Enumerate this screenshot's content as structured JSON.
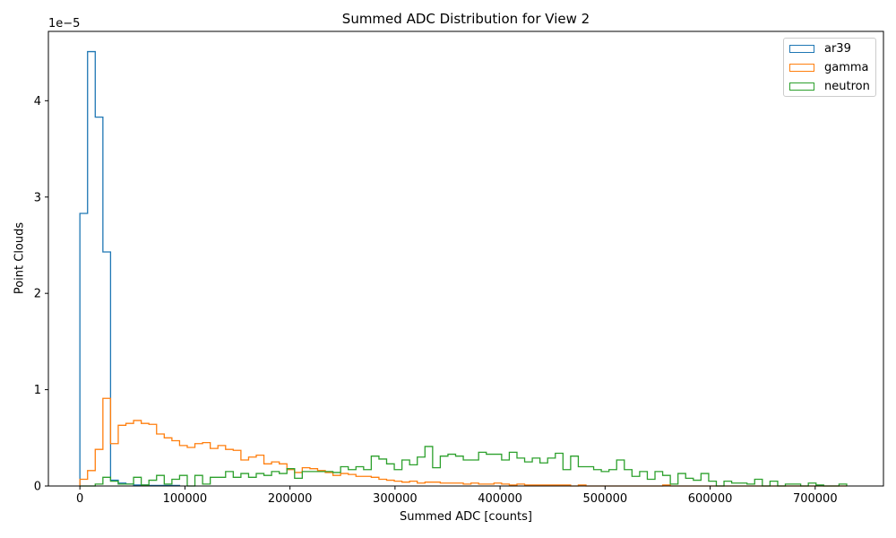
{
  "chart_data": {
    "type": "histogram",
    "title": "Summed ADC Distribution for View 2",
    "xlabel": "Summed ADC [counts]",
    "ylabel": "Point Clouds",
    "y_offset_label": "1e−5",
    "y_scale_exponent": -5,
    "xlim": [
      -30000,
      765000
    ],
    "ylim": [
      0,
      4.72
    ],
    "x_ticks": [
      0,
      100000,
      200000,
      300000,
      400000,
      500000,
      600000,
      700000
    ],
    "y_ticks": [
      0,
      1,
      2,
      3,
      4
    ],
    "grid": false,
    "legend_position": "top-right",
    "series": [
      {
        "name": "ar39",
        "color": "#1f77b4",
        "bin_width": 7300,
        "bin_start": 0,
        "values": [
          2.83,
          4.51,
          3.83,
          2.43,
          0.06,
          0.03,
          0.02,
          0.01,
          0.01,
          0.005,
          0.005,
          0.005,
          0.005
        ]
      },
      {
        "name": "gamma",
        "color": "#ff7f0e",
        "bin_width": 7300,
        "bin_start": 0,
        "values": [
          0.07,
          0.16,
          0.38,
          0.91,
          0.44,
          0.63,
          0.65,
          0.68,
          0.65,
          0.64,
          0.54,
          0.5,
          0.47,
          0.42,
          0.4,
          0.44,
          0.45,
          0.39,
          0.42,
          0.38,
          0.37,
          0.27,
          0.3,
          0.32,
          0.23,
          0.25,
          0.23,
          0.17,
          0.14,
          0.19,
          0.18,
          0.16,
          0.14,
          0.11,
          0.13,
          0.12,
          0.1,
          0.1,
          0.09,
          0.07,
          0.06,
          0.05,
          0.04,
          0.05,
          0.03,
          0.04,
          0.04,
          0.03,
          0.03,
          0.03,
          0.02,
          0.03,
          0.02,
          0.02,
          0.03,
          0.02,
          0.01,
          0.02,
          0.01,
          0.01,
          0.01,
          0.01,
          0.01,
          0.01,
          0.0,
          0.01,
          0.0,
          0.0,
          0.0,
          0.0,
          0.0,
          0.0,
          0.0,
          0.0,
          0.0,
          0.0,
          0.01,
          0.0,
          0.0,
          0.0,
          0.0,
          0.0,
          0.0,
          0.0,
          0.0,
          0.0,
          0.0,
          0.0,
          0.0,
          0.0,
          0.0,
          0.0,
          0.0,
          0.0,
          0.0,
          0.0,
          0.0,
          0.0,
          0.0,
          0.0
        ]
      },
      {
        "name": "neutron",
        "color": "#2ca02c",
        "bin_width": 7300,
        "bin_start": 0,
        "values": [
          0.0,
          0.0,
          0.02,
          0.09,
          0.05,
          0.02,
          0.02,
          0.09,
          0.01,
          0.06,
          0.11,
          0.02,
          0.07,
          0.11,
          0.0,
          0.11,
          0.02,
          0.09,
          0.09,
          0.15,
          0.09,
          0.13,
          0.09,
          0.13,
          0.11,
          0.15,
          0.13,
          0.18,
          0.08,
          0.15,
          0.15,
          0.15,
          0.15,
          0.14,
          0.2,
          0.17,
          0.2,
          0.17,
          0.31,
          0.28,
          0.23,
          0.17,
          0.27,
          0.22,
          0.3,
          0.41,
          0.19,
          0.31,
          0.33,
          0.31,
          0.27,
          0.27,
          0.35,
          0.33,
          0.33,
          0.27,
          0.35,
          0.29,
          0.25,
          0.29,
          0.24,
          0.29,
          0.34,
          0.17,
          0.31,
          0.2,
          0.2,
          0.17,
          0.15,
          0.17,
          0.27,
          0.17,
          0.1,
          0.15,
          0.07,
          0.15,
          0.11,
          0.02,
          0.13,
          0.08,
          0.06,
          0.13,
          0.05,
          0.0,
          0.05,
          0.03,
          0.03,
          0.02,
          0.07,
          0.0,
          0.05,
          0.0,
          0.02,
          0.02,
          0.0,
          0.03,
          0.01,
          0.0,
          0.0,
          0.02
        ]
      }
    ]
  }
}
